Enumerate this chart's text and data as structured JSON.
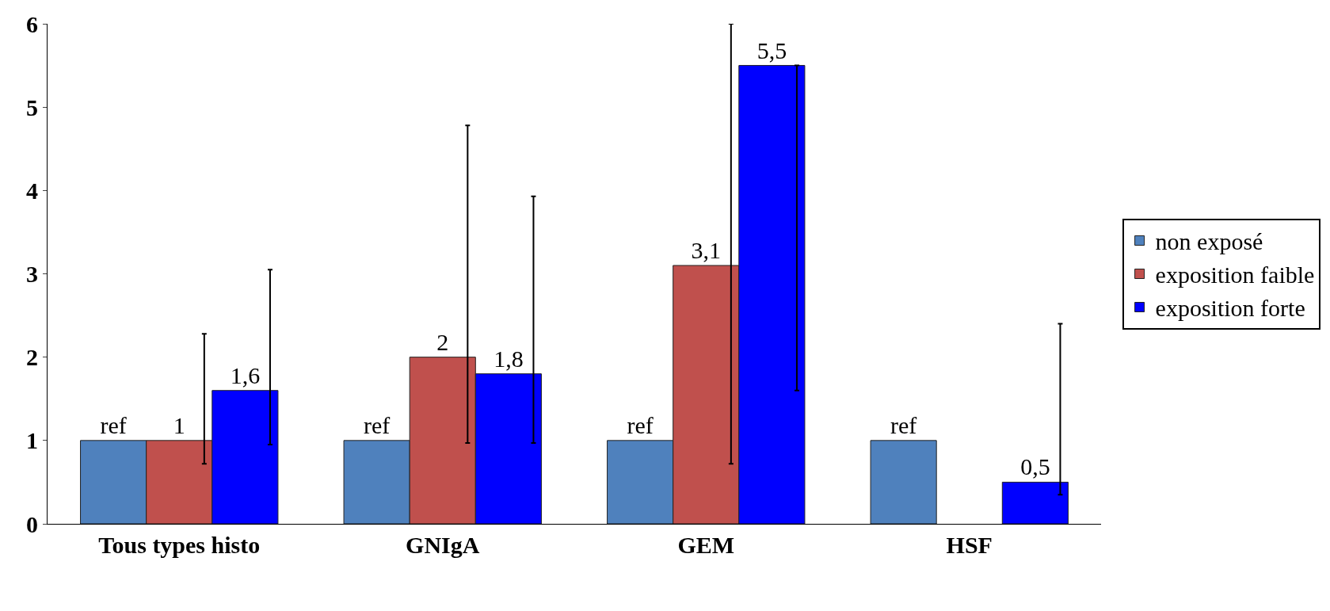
{
  "chart_data": {
    "type": "bar",
    "categories": [
      "Tous types histo",
      "GNIgA",
      "GEM",
      "HSF"
    ],
    "series": [
      {
        "name": "non exposé",
        "color": "#4f81bd",
        "values": [
          1,
          1,
          1,
          1
        ],
        "value_labels": [
          "ref",
          "ref",
          "ref",
          "ref"
        ]
      },
      {
        "name": "exposition faible",
        "color": "#c0504d",
        "values": [
          1,
          2,
          3.1,
          null
        ],
        "value_labels": [
          "1",
          "2",
          "3,1",
          null
        ],
        "errors": [
          [
            0.72,
            2.28
          ],
          [
            0.97,
            4.78
          ],
          [
            0.72,
            6
          ],
          null
        ]
      },
      {
        "name": "exposition forte",
        "color": "#0000ff",
        "values": [
          1.6,
          1.8,
          5.5,
          0.5
        ],
        "value_labels": [
          "1,6",
          "1,8",
          "5,5",
          "0,5"
        ],
        "errors": [
          [
            0.95,
            3.05
          ],
          [
            0.97,
            3.93
          ],
          [
            1.6,
            5.5
          ],
          [
            0.35,
            2.4
          ]
        ]
      }
    ],
    "ylim": [
      0,
      6
    ],
    "yticks": [
      0,
      1,
      2,
      3,
      4,
      5,
      6
    ],
    "legend": "right"
  }
}
